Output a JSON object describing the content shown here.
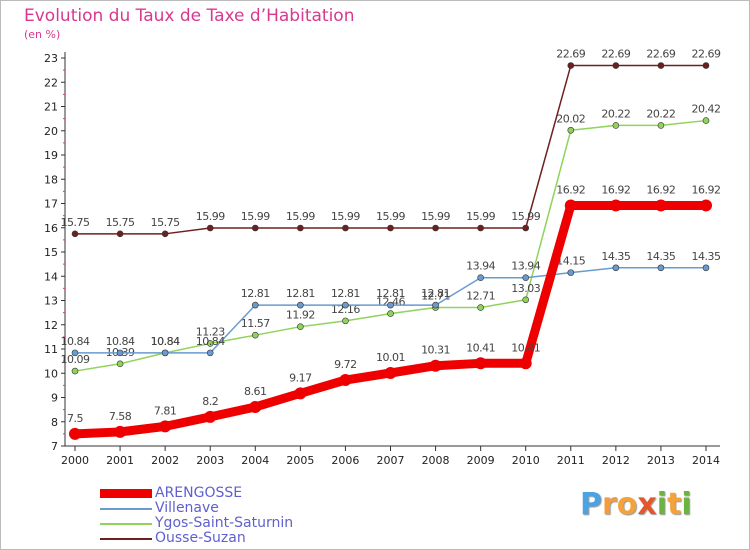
{
  "title": "Evolution du Taux de Taxe d’Habitation",
  "unit": "(en %)",
  "logo_text": "Proxiti",
  "chart_data": {
    "type": "line",
    "title": "Evolution du Taux de Taxe d’Habitation",
    "ylabel": "(en %)",
    "xlabel": "",
    "ylim": [
      7,
      23
    ],
    "grid": false,
    "legend": "bottom-left",
    "x": [
      2000,
      2001,
      2002,
      2003,
      2004,
      2005,
      2006,
      2007,
      2008,
      2009,
      2010,
      2011,
      2012,
      2013,
      2014
    ],
    "series": [
      {
        "name": "Ousse-Suzan",
        "color": "#6e2020",
        "values": [
          15.75,
          15.75,
          15.75,
          15.99,
          15.99,
          15.99,
          15.99,
          15.99,
          15.99,
          15.99,
          15.99,
          22.69,
          22.69,
          22.69,
          22.69
        ],
        "labels": [
          "15.75",
          "15.75",
          "15.75",
          "15.99",
          "15.99",
          "15.99",
          "15.99",
          "15.99",
          "15.99",
          "15.99",
          "15.99",
          "22.69",
          "22.69",
          "22.69",
          "22.69"
        ]
      },
      {
        "name": "Ygos-Saint-Saturnin",
        "color": "#8fd35a",
        "values": [
          10.09,
          10.39,
          10.84,
          11.23,
          11.57,
          11.92,
          12.16,
          12.46,
          12.71,
          12.71,
          13.03,
          20.02,
          20.22,
          20.22,
          20.42
        ],
        "labels": [
          "10.09",
          "10.39",
          "10.84",
          "11.23",
          "11.57",
          "11.92",
          "12.16",
          "12.46",
          "12.71",
          "12.71",
          "13.03",
          "20.02",
          "20.22",
          "20.22",
          "20.42"
        ]
      },
      {
        "name": "Villenave",
        "color": "#6a9bcf",
        "values": [
          10.84,
          10.84,
          10.84,
          10.84,
          12.81,
          12.81,
          12.81,
          12.81,
          12.81,
          13.94,
          13.94,
          14.15,
          14.35,
          14.35,
          14.35
        ],
        "labels": [
          "10.84",
          "10.84",
          "10.84",
          "10.84",
          "12.81",
          "12.81",
          "12.81",
          "12.81",
          "12.81",
          "13.94",
          "13.94",
          "14.15",
          "14.35",
          "14.35",
          "14.35"
        ]
      },
      {
        "name": "ARENGOSSE",
        "color": "#ee0000",
        "values": [
          7.5,
          7.58,
          7.81,
          8.2,
          8.61,
          9.17,
          9.72,
          10.01,
          10.31,
          10.41,
          10.41,
          16.92,
          16.92,
          16.92,
          16.92
        ],
        "labels": [
          "7.5",
          "7.58",
          "7.81",
          "8.2",
          "8.61",
          "9.17",
          "9.72",
          "10.01",
          "10.31",
          "10.41",
          "10.41",
          "16.92",
          "16.92",
          "16.92",
          "16.92"
        ]
      }
    ]
  },
  "legend_items": [
    {
      "name": "ARENGOSSE",
      "color": "#ee0000"
    },
    {
      "name": "Villenave",
      "color": "#6a9bcf"
    },
    {
      "name": "Ygos-Saint-Saturnin",
      "color": "#8fd35a"
    },
    {
      "name": "Ousse-Suzan",
      "color": "#6e2020"
    }
  ]
}
